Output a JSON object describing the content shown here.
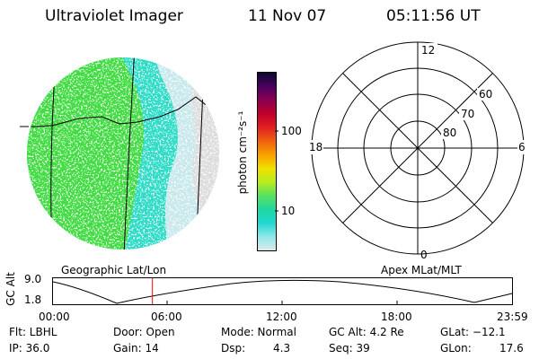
{
  "header": {
    "instrument": "Ultraviolet Imager",
    "date": "11 Nov 07",
    "time": "05:11:56 UT"
  },
  "colorbar": {
    "unit_label": "photon cm⁻²s⁻¹",
    "ticks": [
      "100",
      "10"
    ],
    "colors": [
      "#0a0a2e",
      "#4a0060",
      "#8a0050",
      "#c0002a",
      "#e02020",
      "#f06010",
      "#f8a000",
      "#f0e000",
      "#b8ec20",
      "#58e060",
      "#20d8a0",
      "#20d8d0",
      "#90e8e8",
      "#dce8ec"
    ]
  },
  "polar_plot": {
    "mlt_labels": {
      "top": "12",
      "right": "6",
      "bottom": "0",
      "left": "18"
    },
    "lat_labels": [
      "60",
      "70",
      "80"
    ]
  },
  "plot_labels": {
    "geographic": "Geographic Lat/Lon",
    "apex": "Apex MLat/MLT"
  },
  "altitude_plot": {
    "ylabel": "GC Alt",
    "y_ticks": [
      "9.0",
      "1.8"
    ],
    "x_ticks": [
      "00:00",
      "06:00",
      "12:00",
      "18:00",
      "23:59"
    ],
    "current_time_marker": "05:11:56"
  },
  "status": {
    "row1": [
      "Flt: LBHL",
      "Door: Open",
      "Mode: Normal",
      "GC Alt: 4.2 Re",
      "GLat: −12.1"
    ],
    "row2": [
      "IP: 36.0",
      "Gain: 14",
      "Dsp:",
      "4.3",
      "Seq: 39",
      "GLon:",
      "17.6"
    ]
  },
  "image_colors": {
    "green": "#44dc44",
    "cyan": "#30dcc8",
    "pale": "#c8e8ec",
    "grey": "#dcdcdc",
    "marker": "#ff0000"
  }
}
